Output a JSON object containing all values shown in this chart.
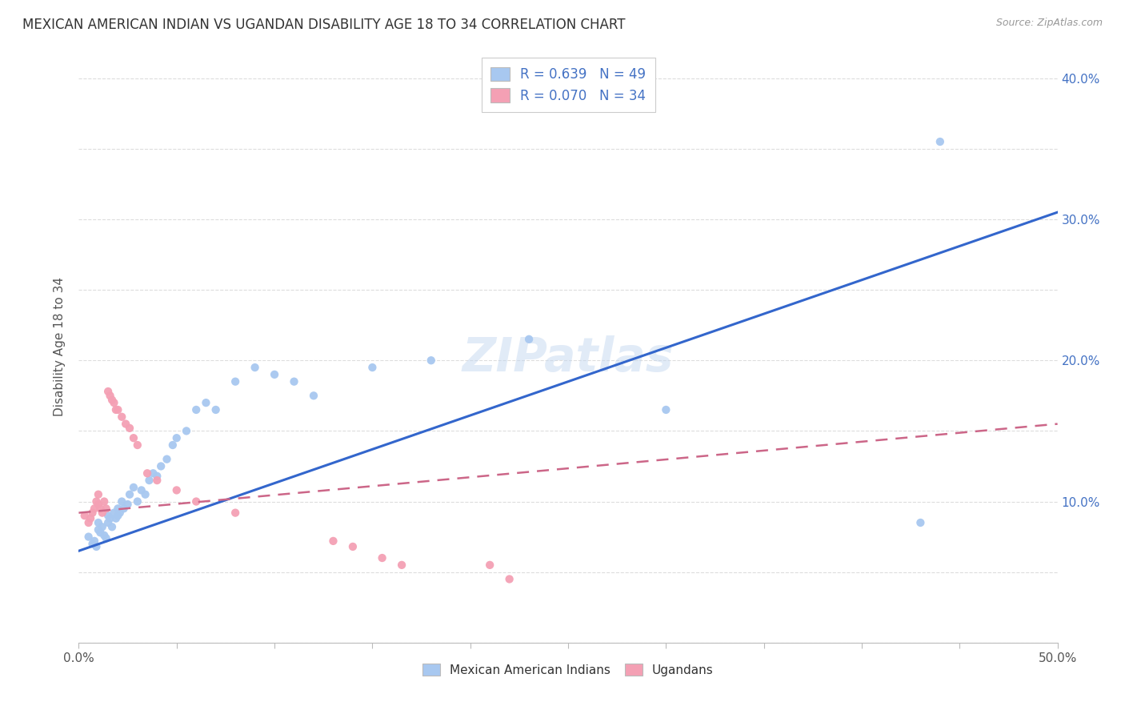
{
  "title": "MEXICAN AMERICAN INDIAN VS UGANDAN DISABILITY AGE 18 TO 34 CORRELATION CHART",
  "source": "Source: ZipAtlas.com",
  "ylabel": "Disability Age 18 to 34",
  "xlim": [
    0.0,
    0.5
  ],
  "ylim": [
    0.0,
    0.42
  ],
  "xticks": [
    0.0,
    0.05,
    0.1,
    0.15,
    0.2,
    0.25,
    0.3,
    0.35,
    0.4,
    0.45,
    0.5
  ],
  "yticks": [
    0.0,
    0.05,
    0.1,
    0.15,
    0.2,
    0.25,
    0.3,
    0.35,
    0.4
  ],
  "blue_r": 0.639,
  "blue_n": 49,
  "pink_r": 0.07,
  "pink_n": 34,
  "blue_color": "#a8c8f0",
  "pink_color": "#f4a0b4",
  "blue_line_color": "#3366cc",
  "pink_line_color": "#cc6688",
  "blue_line_x": [
    0.0,
    0.5
  ],
  "blue_line_y": [
    0.065,
    0.305
  ],
  "pink_line_x": [
    0.0,
    0.5
  ],
  "pink_line_y": [
    0.092,
    0.155
  ],
  "blue_scatter_x": [
    0.005,
    0.007,
    0.008,
    0.009,
    0.01,
    0.01,
    0.011,
    0.012,
    0.013,
    0.014,
    0.015,
    0.015,
    0.016,
    0.017,
    0.018,
    0.019,
    0.02,
    0.02,
    0.021,
    0.022,
    0.023,
    0.025,
    0.026,
    0.028,
    0.03,
    0.032,
    0.034,
    0.036,
    0.038,
    0.04,
    0.042,
    0.045,
    0.048,
    0.05,
    0.055,
    0.06,
    0.065,
    0.07,
    0.08,
    0.09,
    0.1,
    0.11,
    0.12,
    0.15,
    0.18,
    0.23,
    0.3,
    0.43,
    0.44
  ],
  "blue_scatter_y": [
    0.075,
    0.07,
    0.072,
    0.068,
    0.08,
    0.085,
    0.078,
    0.082,
    0.076,
    0.074,
    0.09,
    0.085,
    0.088,
    0.082,
    0.092,
    0.088,
    0.095,
    0.09,
    0.092,
    0.1,
    0.095,
    0.098,
    0.105,
    0.11,
    0.1,
    0.108,
    0.105,
    0.115,
    0.12,
    0.118,
    0.125,
    0.13,
    0.14,
    0.145,
    0.15,
    0.165,
    0.17,
    0.165,
    0.185,
    0.195,
    0.19,
    0.185,
    0.175,
    0.195,
    0.2,
    0.215,
    0.165,
    0.085,
    0.355
  ],
  "pink_scatter_x": [
    0.003,
    0.005,
    0.006,
    0.007,
    0.008,
    0.009,
    0.01,
    0.01,
    0.011,
    0.012,
    0.013,
    0.014,
    0.015,
    0.016,
    0.017,
    0.018,
    0.019,
    0.02,
    0.022,
    0.024,
    0.026,
    0.028,
    0.03,
    0.035,
    0.04,
    0.05,
    0.06,
    0.08,
    0.13,
    0.14,
    0.155,
    0.165,
    0.21,
    0.22
  ],
  "pink_scatter_y": [
    0.09,
    0.085,
    0.088,
    0.092,
    0.095,
    0.1,
    0.105,
    0.098,
    0.095,
    0.092,
    0.1,
    0.095,
    0.178,
    0.175,
    0.172,
    0.17,
    0.165,
    0.165,
    0.16,
    0.155,
    0.152,
    0.145,
    0.14,
    0.12,
    0.115,
    0.108,
    0.1,
    0.092,
    0.072,
    0.068,
    0.06,
    0.055,
    0.055,
    0.045
  ],
  "watermark_text": "ZIPatlas",
  "background_color": "#ffffff",
  "grid_color": "#dddddd"
}
